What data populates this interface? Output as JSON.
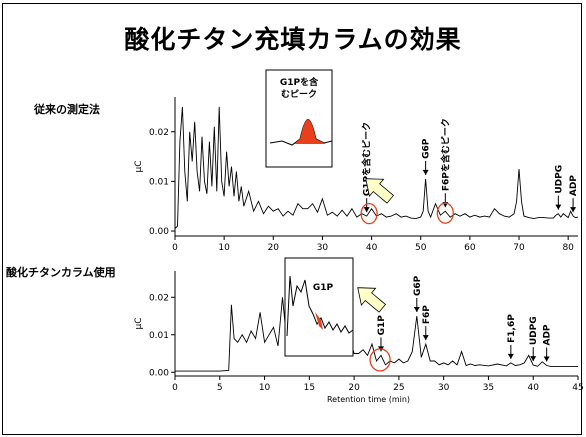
{
  "title": "酸化チタン充填カラムの効果",
  "colors": {
    "highlight": "#e8401c",
    "arrow_fill": "#ffffc8",
    "trace": "#000000"
  },
  "panels": [
    {
      "label": "従来の測定法"
    },
    {
      "label": "酸化チタンカラム使用"
    }
  ],
  "chart_data": [
    {
      "type": "line",
      "title": "",
      "xlabel": "",
      "ylabel": "μC",
      "xlim": [
        0,
        82
      ],
      "ylim": [
        -0.001,
        0.027
      ],
      "xticks": [
        "0",
        "10",
        "20",
        "30",
        "40",
        "50",
        "60",
        "70",
        "80"
      ],
      "yticks": [
        "0.00",
        "0.01",
        "0.02"
      ],
      "series": [
        {
          "x": [
            0,
            0.5,
            1,
            1.5,
            2,
            2.5,
            3,
            3.5,
            4,
            4.5,
            5,
            5.5,
            6,
            6.5,
            7,
            7.5,
            8,
            8.5,
            9,
            9.5,
            10,
            10.5,
            11,
            11.5,
            12,
            12.5,
            13,
            13.5,
            14,
            15,
            16,
            17,
            18,
            19,
            20,
            21,
            22,
            23,
            24,
            25,
            26,
            27,
            28,
            29,
            30,
            31,
            32,
            33,
            34,
            35,
            36,
            37,
            38,
            39,
            40,
            41,
            42,
            43,
            44,
            45,
            46,
            47,
            48,
            49,
            50,
            50.5,
            51,
            51.5,
            52,
            53,
            54,
            55,
            56,
            57,
            58,
            59,
            60,
            61,
            62,
            63,
            64,
            65,
            66,
            67,
            68,
            69,
            69.5,
            70,
            70.5,
            71,
            72,
            73,
            74,
            75,
            76,
            77,
            77.5,
            78,
            78.5,
            79,
            80,
            80.5,
            81,
            81.5,
            82
          ],
          "y": [
            0.0005,
            0.001,
            0.018,
            0.025,
            0.012,
            0.006,
            0.02,
            0.014,
            0.022,
            0.012,
            0.008,
            0.019,
            0.01,
            0.0075,
            0.018,
            0.009,
            0.021,
            0.008,
            0.025,
            0.01,
            0.007,
            0.016,
            0.009,
            0.013,
            0.007,
            0.012,
            0.006,
            0.009,
            0.005,
            0.008,
            0.004,
            0.006,
            0.0035,
            0.005,
            0.004,
            0.0045,
            0.003,
            0.004,
            0.0032,
            0.0055,
            0.0045,
            0.0045,
            0.0055,
            0.0038,
            0.0065,
            0.0032,
            0.0038,
            0.003,
            0.0042,
            0.003,
            0.0045,
            0.0028,
            0.0035,
            0.003,
            0.0045,
            0.003,
            0.0035,
            0.0028,
            0.003,
            0.0035,
            0.0028,
            0.003,
            0.0026,
            0.0025,
            0.0028,
            0.004,
            0.0105,
            0.004,
            0.0028,
            0.0055,
            0.0032,
            0.004,
            0.0028,
            0.0035,
            0.003,
            0.0035,
            0.0028,
            0.0032,
            0.0028,
            0.003,
            0.0028,
            0.0045,
            0.0035,
            0.003,
            0.0028,
            0.0035,
            0.006,
            0.0125,
            0.006,
            0.003,
            0.0027,
            0.0025,
            0.0027,
            0.0027,
            0.0026,
            0.0026,
            0.0032,
            0.0035,
            0.0028,
            0.0035,
            0.0027,
            0.004,
            0.003,
            0.0027,
            0.0028
          ]
        }
      ],
      "annotations": [
        {
          "text": "G1Pを含むピーク",
          "x": 39,
          "orientation": "vertical"
        },
        {
          "text": "G6P",
          "x": 51,
          "orientation": "vertical"
        },
        {
          "text": "F6Pを含むピーク",
          "x": 55,
          "orientation": "vertical"
        },
        {
          "text": "UDPG",
          "x": 78,
          "orientation": "vertical"
        },
        {
          "text": "ADP",
          "x": 81,
          "orientation": "vertical"
        }
      ],
      "inset_label": "G1Pを含むピーク"
    },
    {
      "type": "line",
      "title": "",
      "xlabel": "Retention time (min)",
      "ylabel": "μC",
      "xlim": [
        0,
        45
      ],
      "ylim": [
        -0.001,
        0.027
      ],
      "xticks": [
        "0",
        "5",
        "10",
        "15",
        "20",
        "25",
        "30",
        "35",
        "40",
        "45"
      ],
      "yticks": [
        "0.00",
        "0.01",
        "0.02"
      ],
      "series": [
        {
          "x": [
            0,
            5,
            6,
            6.3,
            6.6,
            7,
            7.5,
            8,
            8.5,
            9,
            9.5,
            10,
            10.5,
            11,
            11.5,
            12,
            12.5,
            13,
            13.5,
            14,
            14.5,
            15,
            15.5,
            16,
            16.5,
            17,
            17.5,
            18,
            18.5,
            19,
            19.5,
            20,
            20.5,
            21,
            21.5,
            22,
            22.5,
            23,
            23.5,
            24,
            24.5,
            25,
            25.5,
            26,
            26.5,
            27,
            27.5,
            28,
            28.5,
            29,
            29.5,
            30,
            30.5,
            31,
            31.5,
            32,
            32.5,
            33,
            33.5,
            34,
            35,
            36,
            37,
            37.5,
            38,
            38.5,
            39,
            39.5,
            40,
            40.5,
            41,
            41.5,
            42,
            43,
            44,
            45
          ],
          "y": [
            0.0003,
            0.0003,
            0.0005,
            0.018,
            0.009,
            0.008,
            0.01,
            0.008,
            0.011,
            0.009,
            0.016,
            0.008,
            0.01,
            0.012,
            0.007,
            0.02,
            0.008,
            0.009,
            0.007,
            0.012,
            0.006,
            0.011,
            0.01,
            0.0135,
            0.006,
            0.007,
            0.005,
            0.0065,
            0.0045,
            0.0055,
            0.009,
            0.005,
            0.005,
            0.006,
            0.0045,
            0.0075,
            0.003,
            0.0045,
            0.002,
            0.003,
            0.0025,
            0.0035,
            0.0025,
            0.003,
            0.0055,
            0.015,
            0.004,
            0.0075,
            0.003,
            0.003,
            0.002,
            0.0025,
            0.002,
            0.003,
            0.002,
            0.0055,
            0.0018,
            0.0022,
            0.0018,
            0.002,
            0.0017,
            0.0022,
            0.0017,
            0.0025,
            0.0018,
            0.002,
            0.0025,
            0.0045,
            0.0019,
            0.0016,
            0.0028,
            0.0018,
            0.0015,
            0.0015,
            0.0015,
            0.0015
          ]
        }
      ],
      "annotations": [
        {
          "text": "G1P",
          "x": 23,
          "orientation": "vertical"
        },
        {
          "text": "G6P",
          "x": 27,
          "orientation": "vertical"
        },
        {
          "text": "F6P",
          "x": 28,
          "orientation": "vertical"
        },
        {
          "text": "F1,6P",
          "x": 37.5,
          "orientation": "vertical"
        },
        {
          "text": "UDPG",
          "x": 40,
          "orientation": "vertical"
        },
        {
          "text": "ADP",
          "x": 41.5,
          "orientation": "vertical"
        }
      ],
      "inset_label": "G1P"
    }
  ]
}
